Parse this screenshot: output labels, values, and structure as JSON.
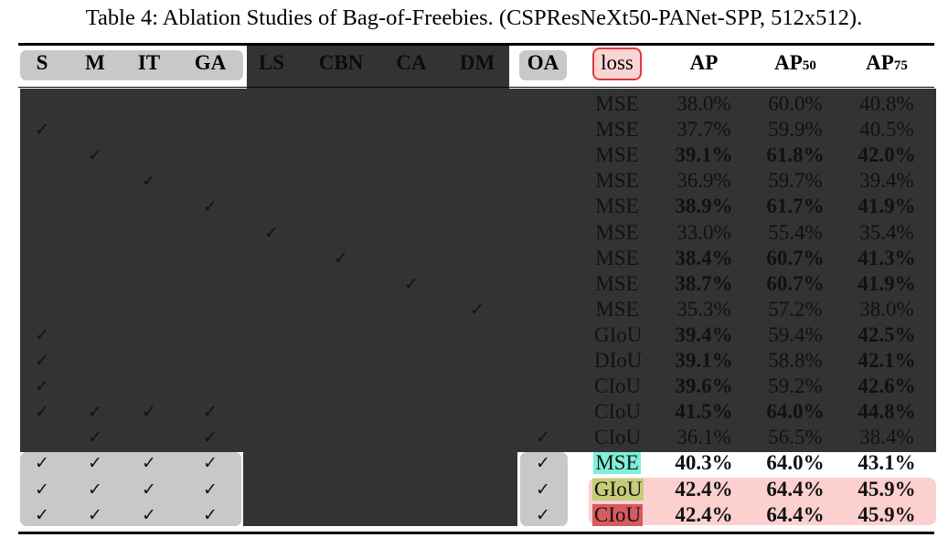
{
  "caption": "Table 4: Ablation Studies of Bag-of-Freebies. (CSPResNeXt50-PANet-SPP, 512x512).",
  "headers": {
    "S": "S",
    "M": "M",
    "IT": "IT",
    "GA": "GA",
    "LS": "LS",
    "CBN": "CBN",
    "CA": "CA",
    "DM": "DM",
    "OA": "OA",
    "loss": "loss",
    "AP": "AP",
    "AP50_base": "AP",
    "AP50_sub": "50",
    "AP75_base": "AP",
    "AP75_sub": "75"
  },
  "check_symbol": "✓",
  "colors": {
    "dark_region": "#333333",
    "grey_pill": "#c8c8c8",
    "loss_badge_border": "#e0393c",
    "loss_badge_fill": "#fbd4d4",
    "pink_highlight": "#fdd0d0",
    "mse_tag": "#7ff0d8",
    "giou_tag": "#c5cc7a",
    "ciou_tag": "#d85a5e"
  },
  "rows": [
    {
      "checks": [],
      "loss": "MSE",
      "ap": "38.0%",
      "ap50": "60.0%",
      "ap75": "40.8%",
      "bold": []
    },
    {
      "checks": [
        "S"
      ],
      "loss": "MSE",
      "ap": "37.7%",
      "ap50": "59.9%",
      "ap75": "40.5%",
      "bold": []
    },
    {
      "checks": [
        "M"
      ],
      "loss": "MSE",
      "ap": "39.1%",
      "ap50": "61.8%",
      "ap75": "42.0%",
      "bold": [
        "ap",
        "ap50",
        "ap75"
      ]
    },
    {
      "checks": [
        "IT"
      ],
      "loss": "MSE",
      "ap": "36.9%",
      "ap50": "59.7%",
      "ap75": "39.4%",
      "bold": []
    },
    {
      "checks": [
        "GA"
      ],
      "loss": "MSE",
      "ap": "38.9%",
      "ap50": "61.7%",
      "ap75": "41.9%",
      "bold": [
        "ap",
        "ap50",
        "ap75"
      ]
    },
    {
      "checks": [
        "LS"
      ],
      "loss": "MSE",
      "ap": "33.0%",
      "ap50": "55.4%",
      "ap75": "35.4%",
      "bold": []
    },
    {
      "checks": [
        "CBN"
      ],
      "loss": "MSE",
      "ap": "38.4%",
      "ap50": "60.7%",
      "ap75": "41.3%",
      "bold": [
        "ap",
        "ap50",
        "ap75"
      ]
    },
    {
      "checks": [
        "CA"
      ],
      "loss": "MSE",
      "ap": "38.7%",
      "ap50": "60.7%",
      "ap75": "41.9%",
      "bold": [
        "ap",
        "ap50",
        "ap75"
      ]
    },
    {
      "checks": [
        "DM"
      ],
      "loss": "MSE",
      "ap": "35.3%",
      "ap50": "57.2%",
      "ap75": "38.0%",
      "bold": []
    },
    {
      "checks": [
        "S"
      ],
      "loss": "GIoU",
      "ap": "39.4%",
      "ap50": "59.4%",
      "ap75": "42.5%",
      "bold": [
        "ap",
        "ap75"
      ]
    },
    {
      "checks": [
        "S"
      ],
      "loss": "DIoU",
      "ap": "39.1%",
      "ap50": "58.8%",
      "ap75": "42.1%",
      "bold": [
        "ap",
        "ap75"
      ]
    },
    {
      "checks": [
        "S"
      ],
      "loss": "CIoU",
      "ap": "39.6%",
      "ap50": "59.2%",
      "ap75": "42.6%",
      "bold": [
        "ap",
        "ap75"
      ]
    },
    {
      "checks": [
        "S",
        "M",
        "IT",
        "GA"
      ],
      "loss": "CIoU",
      "ap": "41.5%",
      "ap50": "64.0%",
      "ap75": "44.8%",
      "bold": [
        "ap",
        "ap50",
        "ap75"
      ]
    },
    {
      "checks": [
        "M",
        "GA",
        "OA"
      ],
      "loss": "CIoU",
      "ap": "36.1%",
      "ap50": "56.5%",
      "ap75": "38.4%",
      "bold": []
    },
    {
      "checks": [
        "S",
        "M",
        "IT",
        "GA",
        "OA"
      ],
      "loss": "MSE",
      "ap": "40.3%",
      "ap50": "64.0%",
      "ap75": "43.1%",
      "bold": [
        "ap",
        "ap50",
        "ap75"
      ]
    },
    {
      "checks": [
        "S",
        "M",
        "IT",
        "GA",
        "OA"
      ],
      "loss": "GIoU",
      "ap": "42.4%",
      "ap50": "64.4%",
      "ap75": "45.9%",
      "bold": [
        "ap",
        "ap50",
        "ap75"
      ]
    },
    {
      "checks": [
        "S",
        "M",
        "IT",
        "GA",
        "OA"
      ],
      "loss": "CIoU",
      "ap": "42.4%",
      "ap50": "64.4%",
      "ap75": "45.9%",
      "bold": [
        "ap",
        "ap50",
        "ap75"
      ]
    }
  ]
}
